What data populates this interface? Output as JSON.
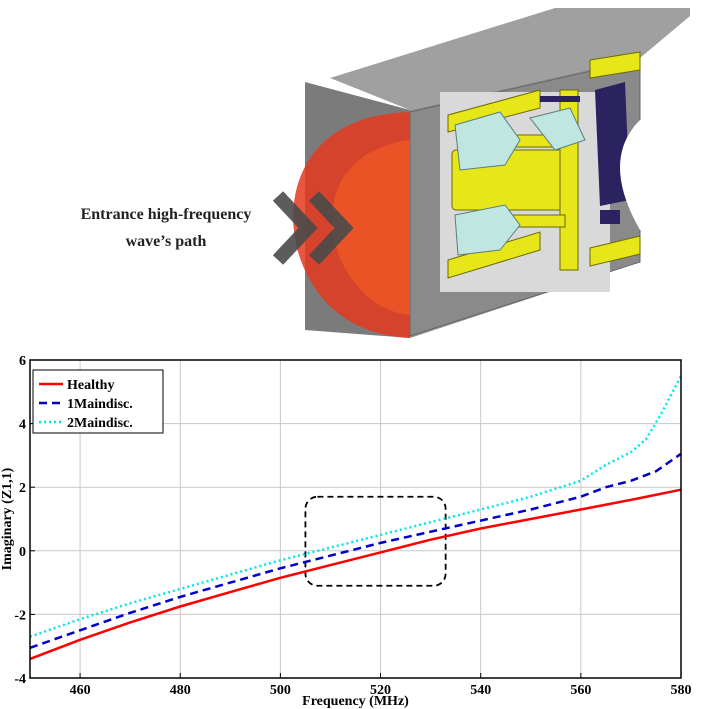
{
  "illustration": {
    "label_line1": "Entrance high-frequency",
    "label_line2": "wave’s path",
    "colors": {
      "dome": "#e53a1e",
      "outer_shell": "#9a9a9a",
      "metal": "#e6e619",
      "insulator": "#bfe6e0",
      "dark_part": "#2a2360",
      "arrow": "#4a4a4a"
    }
  },
  "chart_data": {
    "type": "line",
    "xlabel": "Frequency (MHz)",
    "ylabel": "Imaginary (Z1,1)",
    "xlim": [
      450,
      580
    ],
    "ylim": [
      -4,
      6
    ],
    "xticks": [
      460,
      480,
      500,
      520,
      540,
      560,
      580
    ],
    "yticks": [
      -4,
      -2,
      0,
      2,
      4,
      6
    ],
    "grid": true,
    "legend_position": "top-left",
    "highlight_box": {
      "x": [
        505,
        533
      ],
      "y": [
        -1.1,
        1.7
      ],
      "style": "dashed"
    },
    "series": [
      {
        "name": "Healthy",
        "color": "#ff0000",
        "dash": "solid",
        "x": [
          450,
          460,
          470,
          480,
          490,
          500,
          510,
          520,
          530,
          540,
          550,
          560,
          570,
          580
        ],
        "y": [
          -3.4,
          -2.8,
          -2.25,
          -1.75,
          -1.3,
          -0.85,
          -0.45,
          -0.05,
          0.35,
          0.7,
          1.0,
          1.3,
          1.6,
          1.92
        ]
      },
      {
        "name": "1Maindisc.",
        "color": "#0000cc",
        "dash": "dashed",
        "x": [
          450,
          460,
          470,
          480,
          490,
          500,
          510,
          520,
          530,
          540,
          550,
          560,
          565,
          570,
          575,
          580
        ],
        "y": [
          -3.05,
          -2.5,
          -1.95,
          -1.45,
          -1.0,
          -0.55,
          -0.15,
          0.25,
          0.6,
          0.95,
          1.3,
          1.7,
          2.0,
          2.2,
          2.5,
          3.05
        ]
      },
      {
        "name": "2Maindisc.",
        "color": "#00e5ee",
        "dash": "dotted",
        "x": [
          450,
          460,
          470,
          480,
          490,
          500,
          510,
          520,
          530,
          540,
          550,
          560,
          565,
          570,
          573,
          576,
          580
        ],
        "y": [
          -2.7,
          -2.15,
          -1.65,
          -1.2,
          -0.75,
          -0.3,
          0.1,
          0.5,
          0.9,
          1.3,
          1.7,
          2.2,
          2.7,
          3.1,
          3.5,
          4.3,
          5.5
        ]
      }
    ]
  }
}
